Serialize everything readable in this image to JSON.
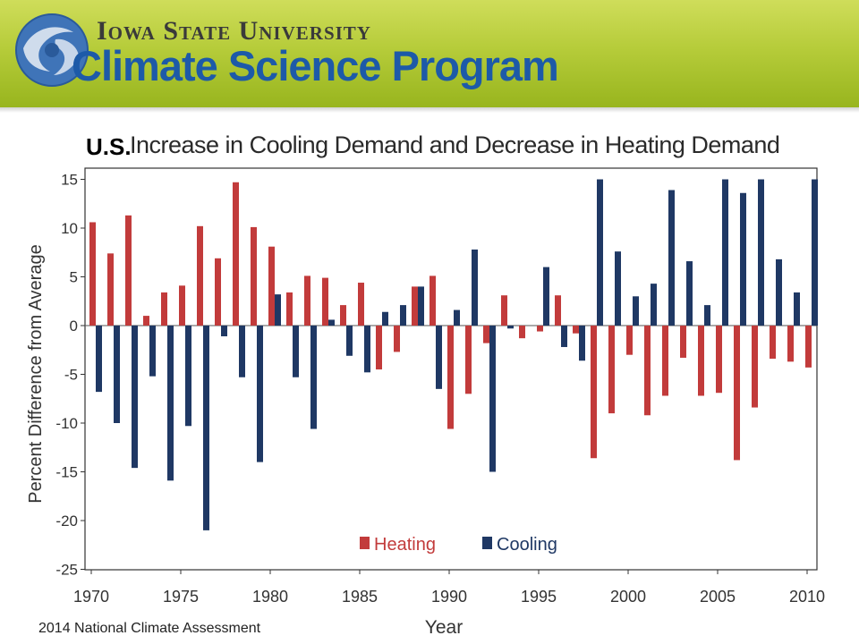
{
  "header": {
    "university": "Iowa State University",
    "program": "Climate Science Program",
    "logo_icon": "globe-swirl-icon"
  },
  "slide": {
    "region_label": "U.S.",
    "credit": "2014 National Climate Assessment"
  },
  "colors": {
    "heating": "#c23b3b",
    "cooling": "#1f3864"
  },
  "chart_data": {
    "type": "bar",
    "title": "Increase in Cooling Demand and Decrease in Heating Demand",
    "xlabel": "Year",
    "ylabel": "Percent Difference from Average",
    "ylim": [
      -25,
      15
    ],
    "yticks": [
      15,
      10,
      5,
      0,
      -5,
      -10,
      -15,
      -20,
      -25
    ],
    "xticks": [
      1970,
      1975,
      1980,
      1985,
      1990,
      1995,
      2000,
      2005,
      2010
    ],
    "grid": false,
    "legend_position": "bottom-center",
    "categories": [
      1970,
      1971,
      1972,
      1973,
      1974,
      1975,
      1976,
      1977,
      1978,
      1979,
      1980,
      1981,
      1982,
      1983,
      1984,
      1985,
      1986,
      1987,
      1988,
      1989,
      1990,
      1991,
      1992,
      1993,
      1994,
      1995,
      1996,
      1997,
      1998,
      1999,
      2000,
      2001,
      2002,
      2003,
      2004,
      2005,
      2006,
      2007,
      2008,
      2009,
      2010
    ],
    "series": [
      {
        "name": "Heating",
        "values": [
          10.6,
          7.4,
          11.3,
          1.0,
          3.4,
          4.1,
          10.2,
          6.9,
          14.7,
          10.1,
          8.1,
          3.4,
          5.1,
          4.9,
          2.1,
          4.4,
          -4.5,
          -2.7,
          4.0,
          5.1,
          -10.6,
          -7.0,
          -1.8,
          3.1,
          -1.3,
          -0.6,
          3.1,
          -0.8,
          -13.6,
          -9.0,
          -3.0,
          -9.2,
          -7.2,
          -3.3,
          -7.2,
          -6.9,
          -13.8,
          -8.4,
          -3.4,
          -3.7,
          -4.3
        ]
      },
      {
        "name": "Cooling",
        "values": [
          -6.8,
          -10.0,
          -14.6,
          -5.2,
          -15.9,
          -10.3,
          -21.0,
          -1.1,
          -5.3,
          -14.0,
          3.2,
          -5.3,
          -10.6,
          0.6,
          -3.1,
          -4.8,
          1.4,
          2.1,
          4.0,
          -6.5,
          1.6,
          7.8,
          -15.0,
          -0.3,
          0.0,
          6.0,
          -2.2,
          -3.6,
          15.0,
          7.6,
          3.0,
          4.3,
          13.9,
          6.6,
          2.1,
          15.0,
          13.6,
          15.0,
          6.8,
          3.4,
          15.0
        ]
      }
    ]
  }
}
